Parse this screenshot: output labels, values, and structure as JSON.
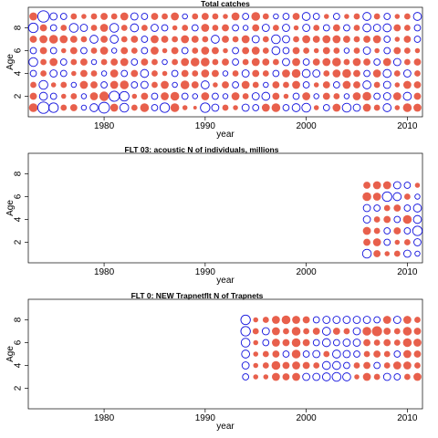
{
  "chart_data": [
    {
      "type": "scatter",
      "title": "Total catches",
      "xlabel": "year",
      "ylabel": "Age",
      "xlim": [
        1972.5,
        2011.5
      ],
      "ylim": [
        0.2,
        9.8
      ],
      "xticks": [
        1980,
        1990,
        2000,
        2010
      ],
      "yticks": [
        2,
        4,
        6,
        8
      ],
      "years": [
        1973,
        1974,
        1975,
        1976,
        1977,
        1978,
        1979,
        1980,
        1981,
        1982,
        1983,
        1984,
        1985,
        1986,
        1987,
        1988,
        1989,
        1990,
        1991,
        1992,
        1993,
        1994,
        1995,
        1996,
        1997,
        1998,
        1999,
        2000,
        2001,
        2002,
        2003,
        2004,
        2005,
        2006,
        2007,
        2008,
        2009,
        2010,
        2011
      ],
      "ages": [
        1,
        2,
        3,
        4,
        5,
        6,
        7,
        8,
        9
      ],
      "legend": "none",
      "residuals": [
        [
          0.6,
          -1.0,
          -0.7,
          0.3,
          0.4,
          -0.2,
          -0.5,
          -0.9,
          0.5,
          -0.6,
          0.3,
          0.6,
          -0.3,
          -0.7,
          0.6,
          0.2,
          0.1,
          -0.7,
          -0.4,
          0.3,
          0.2,
          -0.4,
          -0.3,
          0.5,
          0.6,
          -0.3,
          -0.5,
          -0.6,
          0.2,
          -0.3,
          0.5,
          -0.6,
          -0.4,
          0.5,
          0.3,
          -0.5,
          0.2,
          0.6,
          0.5
        ],
        [
          0.4,
          -0.5,
          -0.3,
          0.2,
          0.3,
          -0.2,
          0.5,
          0.7,
          -0.8,
          -0.7,
          0.2,
          0.4,
          -0.3,
          0.5,
          0.6,
          -0.3,
          -0.2,
          0.5,
          -0.3,
          -0.2,
          0.5,
          0.3,
          -0.4,
          -0.5,
          0.4,
          0.2,
          -0.3,
          0.5,
          -0.2,
          0.4,
          0.3,
          -0.2,
          0.5,
          0.6,
          -0.3,
          -0.4,
          0.5,
          -0.5,
          0.4
        ],
        [
          0.3,
          -0.6,
          0.2,
          0.3,
          -0.2,
          0.5,
          0.4,
          -0.3,
          0.5,
          0.6,
          -0.3,
          -0.4,
          0.3,
          0.5,
          -0.2,
          0.6,
          0.4,
          -0.5,
          0.2,
          0.4,
          -0.3,
          0.5,
          0.3,
          -0.2,
          0.4,
          0.3,
          0.5,
          -0.3,
          0.2,
          0.4,
          -0.3,
          0.5,
          0.4,
          -0.5,
          0.3,
          -0.4,
          0.2,
          0.5,
          0.4
        ],
        [
          -0.3,
          0.3,
          -0.4,
          -0.3,
          0.2,
          0.4,
          0.3,
          -0.2,
          0.5,
          -0.3,
          0.4,
          -0.5,
          0.3,
          0.2,
          -0.3,
          0.4,
          0.3,
          0.5,
          0.4,
          -0.2,
          0.3,
          -0.4,
          0.4,
          0.3,
          -0.3,
          0.5,
          0.6,
          -0.5,
          -0.4,
          0.3,
          0.5,
          0.6,
          0.4,
          -0.3,
          0.5,
          -0.5,
          0.3,
          -0.4,
          0.3
        ],
        [
          -0.6,
          0.3,
          0.5,
          -0.3,
          0.3,
          0.4,
          -0.2,
          0.3,
          0.4,
          0.5,
          -0.3,
          0.4,
          0.3,
          -0.2,
          0.3,
          0.5,
          0.6,
          0.6,
          0.3,
          0.4,
          -0.3,
          0.3,
          0.5,
          0.4,
          0.3,
          -0.4,
          0.5,
          -0.3,
          0.4,
          0.5,
          0.6,
          0.3,
          0.5,
          0.4,
          -0.3,
          0.5,
          -0.4,
          0.3,
          0.4
        ],
        [
          -0.3,
          0.4,
          -0.3,
          0.2,
          0.4,
          -0.3,
          0.3,
          0.5,
          -0.2,
          0.4,
          0.3,
          -0.3,
          0.5,
          0.2,
          0.4,
          -0.3,
          0.3,
          0.5,
          0.4,
          0.2,
          -0.3,
          0.4,
          0.5,
          0.3,
          -0.5,
          -0.3,
          0.4,
          0.3,
          0.2,
          0.4,
          0.3,
          -0.2,
          0.3,
          -0.4,
          0.2,
          -0.3,
          0.4,
          0.3,
          0.2
        ],
        [
          0.4,
          0.5,
          0.6,
          0.5,
          0.4,
          0.3,
          -0.5,
          0.4,
          -0.5,
          0.3,
          0.4,
          -0.3,
          0.5,
          0.4,
          0.3,
          0.5,
          0.4,
          0.3,
          -0.5,
          0.4,
          0.3,
          0.5,
          -0.4,
          0.3,
          -0.6,
          -0.4,
          0.3,
          0.5,
          0.4,
          0.5,
          0.5,
          0.4,
          0.3,
          0.4,
          0.5,
          -0.3,
          0.2,
          0.4,
          -0.3
        ],
        [
          -0.7,
          0.4,
          -0.3,
          0.3,
          -0.6,
          -0.4,
          0.3,
          0.5,
          -0.6,
          0.3,
          -0.5,
          0.3,
          -0.4,
          -0.3,
          0.2,
          0.3,
          -0.3,
          0.5,
          0.3,
          0.4,
          -0.3,
          -0.2,
          0.4,
          -0.4,
          0.3,
          -0.4,
          0.2,
          -0.4,
          0.3,
          -0.3,
          0.4,
          -0.3,
          0.3,
          -0.5,
          -0.4,
          -0.5,
          0.4,
          0.3,
          -0.3
        ],
        [
          0.5,
          -1.0,
          -0.4,
          -0.3,
          0.3,
          0.2,
          0.3,
          0.4,
          0.3,
          0.5,
          -0.4,
          -0.3,
          0.4,
          0.3,
          0.5,
          -0.2,
          0.3,
          0.4,
          0.3,
          0.2,
          0.5,
          -0.3,
          0.6,
          0.3,
          -0.2,
          -0.3,
          0.4,
          -0.5,
          -0.3,
          0.2,
          -0.3,
          0.2,
          0.3,
          -0.5,
          0.3,
          -0.3,
          0.2,
          0.3,
          -0.5
        ]
      ]
    },
    {
      "type": "scatter",
      "title": "FLT 03:   acoustic    N of individuals, millions",
      "xlabel": "year",
      "ylabel": "Age",
      "xlim": [
        1972.5,
        2011.5
      ],
      "ylim": [
        0.2,
        9.8
      ],
      "xticks": [
        1980,
        1990,
        2000,
        2010
      ],
      "yticks": [
        2,
        4,
        6,
        8
      ],
      "years": [
        2006,
        2007,
        2008,
        2009,
        2010,
        2011
      ],
      "ages": [
        1,
        2,
        3,
        4,
        5,
        6,
        7
      ],
      "legend": "none",
      "residuals": [
        [
          -0.6,
          0.4,
          0.2,
          0.3,
          -0.4,
          -0.2
        ],
        [
          0.4,
          0.5,
          -0.3,
          0.2,
          0.3,
          -0.4
        ],
        [
          0.5,
          0.3,
          -0.3,
          0.4,
          -0.3,
          -0.7
        ],
        [
          -0.4,
          0.3,
          0.4,
          -0.3,
          0.6,
          -0.5
        ],
        [
          -0.4,
          -0.3,
          0.3,
          0.4,
          -0.3,
          -0.5
        ],
        [
          0.6,
          0.5,
          -0.7,
          -0.5,
          0.3,
          -0.2
        ],
        [
          0.4,
          0.5,
          0.5,
          -0.4,
          -0.3,
          0.2
        ]
      ]
    },
    {
      "type": "scatter",
      "title": "FLT 0: NEW Trapnetflt     N of Trapnets",
      "xlabel": "year",
      "ylabel": "Age",
      "xlim": [
        1972.5,
        2011.5
      ],
      "ylim": [
        0.2,
        9.8
      ],
      "xticks": [
        1980,
        1990,
        2000,
        2010
      ],
      "yticks": [
        2,
        4,
        6,
        8
      ],
      "years": [
        1994,
        1995,
        1996,
        1997,
        1998,
        1999,
        2000,
        2001,
        2002,
        2003,
        2004,
        2005,
        2006,
        2007,
        2008,
        2009,
        2010,
        2011
      ],
      "ages": [
        3,
        4,
        5,
        6,
        7,
        8
      ],
      "legend": "none",
      "residuals": [
        [
          -0.3,
          0.2,
          0.2,
          0.5,
          0.4,
          0.5,
          -0.4,
          -0.4,
          -0.5,
          -0.6,
          -0.5,
          0.2,
          0.5,
          0.3,
          -0.4,
          -0.3,
          0.3,
          0.5
        ],
        [
          -0.4,
          0.2,
          0.3,
          0.6,
          0.4,
          0.5,
          0.4,
          0.3,
          -0.5,
          -0.5,
          -0.3,
          0.3,
          0.4,
          -0.3,
          0.3,
          0.5,
          0.5,
          0.3
        ],
        [
          -0.5,
          0.2,
          0.3,
          0.4,
          -0.3,
          0.6,
          -0.3,
          -0.4,
          0.3,
          -0.5,
          -0.4,
          -0.3,
          0.3,
          0.4,
          0.3,
          -0.3,
          0.5,
          0.4
        ],
        [
          -0.6,
          0.2,
          -0.3,
          0.5,
          0.4,
          0.6,
          0.4,
          -0.3,
          -0.5,
          -0.3,
          -0.4,
          -0.4,
          0.4,
          0.3,
          0.4,
          0.3,
          0.6,
          0.5
        ],
        [
          -0.7,
          0.3,
          -0.4,
          0.5,
          0.3,
          0.6,
          0.3,
          0.4,
          -0.5,
          0.4,
          0.3,
          -0.4,
          0.6,
          0.8,
          0.4,
          0.3,
          0.6,
          0.4
        ],
        [
          -0.7,
          0.2,
          0.3,
          0.5,
          0.6,
          0.5,
          0.4,
          -0.3,
          -0.4,
          -0.4,
          -0.4,
          -0.4,
          -0.4,
          -0.3,
          0.5,
          -0.4,
          0.5,
          0.3
        ]
      ]
    }
  ]
}
